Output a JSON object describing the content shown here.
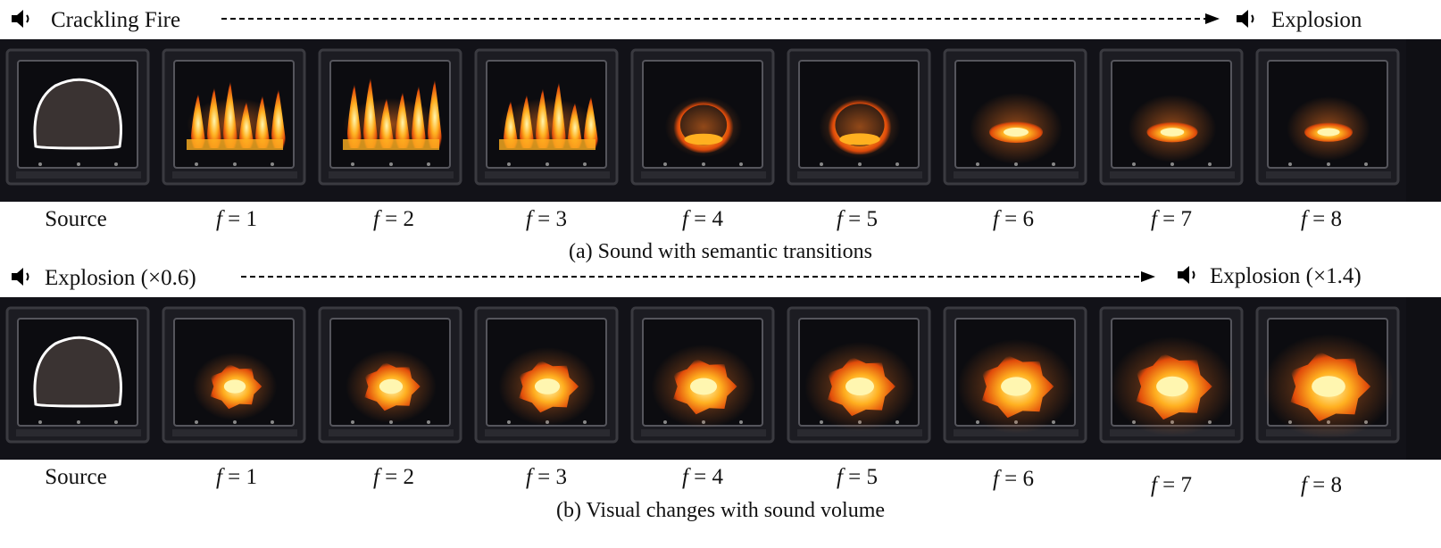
{
  "row_a": {
    "left_sound": "Crackling Fire",
    "right_sound": "Explosion",
    "source_label": "Source",
    "frame_labels": [
      "f = 1",
      "f = 2",
      "f = 3",
      "f = 4",
      "f = 5",
      "f = 6",
      "f = 7",
      "f = 8"
    ],
    "caption": "(a) Sound with semantic transitions"
  },
  "row_b": {
    "left_sound": "Explosion (×0.6)",
    "right_sound": "Explosion (×1.4)",
    "source_label": "Source",
    "frame_labels": [
      "f = 1",
      "f = 2",
      "f = 3",
      "f = 4",
      "f = 5",
      "f = 6",
      "f = 7",
      "f = 8"
    ],
    "caption": "(b) Visual changes with sound volume"
  },
  "colors": {
    "strip_bg": "#0f0f14",
    "flame_core": "#fff6b0",
    "flame_mid": "#ffb020",
    "flame_outer": "#e04a0a",
    "mask_outline": "#ffffff"
  },
  "icons": [
    "speaker-icon",
    "arrow-right-icon"
  ]
}
